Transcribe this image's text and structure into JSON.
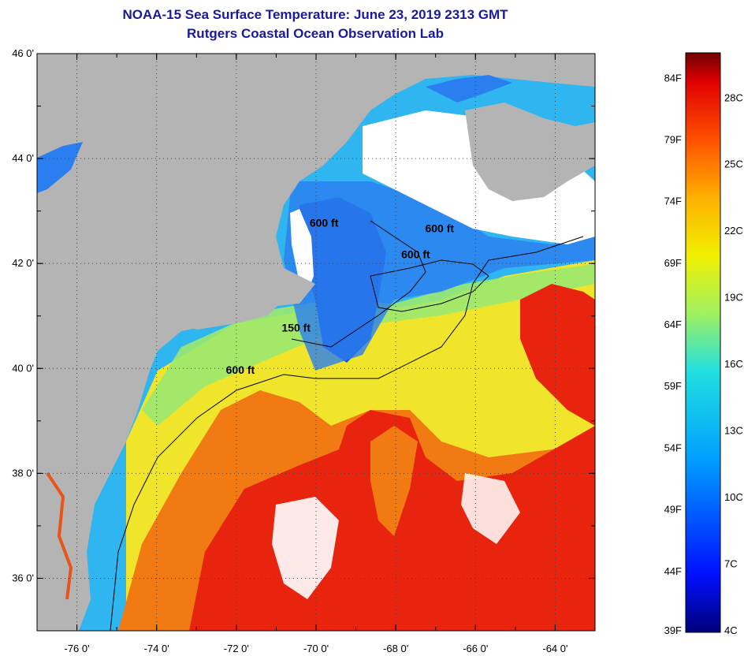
{
  "title": {
    "line1": "NOAA-15 Sea Surface Temperature:  June 23, 2019 2313 GMT",
    "line2": "Rutgers Coastal Ocean Observation Lab"
  },
  "map": {
    "lon_range": [
      -77.0,
      -63.0
    ],
    "lat_range": [
      35.0,
      46.0
    ],
    "lat_labels": [
      {
        "lat": 46,
        "label": "46 0'"
      },
      {
        "lat": 44,
        "label": "44 0'"
      },
      {
        "lat": 42,
        "label": "42 0'"
      },
      {
        "lat": 40,
        "label": "40 0'"
      },
      {
        "lat": 38,
        "label": "38 0'"
      },
      {
        "lat": 36,
        "label": "36 0'"
      }
    ],
    "lon_labels": [
      {
        "lon": -76,
        "label": "-76 0'"
      },
      {
        "lon": -74,
        "label": "-74 0'"
      },
      {
        "lon": -72,
        "label": "-72 0'"
      },
      {
        "lon": -70,
        "label": "-70 0'"
      },
      {
        "lon": -68,
        "label": "-68 0'"
      },
      {
        "lon": -66,
        "label": "-66 0'"
      },
      {
        "lon": -64,
        "label": "-64 0'"
      }
    ],
    "depth_labels": [
      {
        "text": "600 ft",
        "lon": -69.8,
        "lat": 42.7
      },
      {
        "text": "600 ft",
        "lon": -66.9,
        "lat": 42.6
      },
      {
        "text": "600 ft",
        "lon": -67.5,
        "lat": 42.1
      },
      {
        "text": "150 ft",
        "lon": -70.5,
        "lat": 40.7
      },
      {
        "text": "600 ft",
        "lon": -71.9,
        "lat": 39.9
      }
    ],
    "colors": {
      "land": "#b4b4b4",
      "cloud": "#ffffff",
      "cold": "#1a4fd8",
      "cool": "#2fb6f0",
      "mild": "#7ee89a",
      "warm": "#f2e22a",
      "hot": "#f26a10",
      "gulfstream": "#e8240e"
    }
  },
  "colorbar": {
    "f_labels": [
      {
        "t": 84,
        "label": "84F"
      },
      {
        "t": 79,
        "label": "79F"
      },
      {
        "t": 74,
        "label": "74F"
      },
      {
        "t": 69,
        "label": "69F"
      },
      {
        "t": 64,
        "label": "64F"
      },
      {
        "t": 59,
        "label": "59F"
      },
      {
        "t": 54,
        "label": "54F"
      },
      {
        "t": 49,
        "label": "49F"
      },
      {
        "t": 44,
        "label": "44F"
      },
      {
        "t": 39,
        "label": "39F"
      }
    ],
    "c_labels": [
      {
        "t": 28,
        "label": "28C"
      },
      {
        "t": 25,
        "label": "25C"
      },
      {
        "t": 22,
        "label": "22C"
      },
      {
        "t": 19,
        "label": "19C"
      },
      {
        "t": 16,
        "label": "16C"
      },
      {
        "t": 13,
        "label": "13C"
      },
      {
        "t": 10,
        "label": "10C"
      },
      {
        "t": 7,
        "label": "7C"
      },
      {
        "t": 4,
        "label": "4C"
      }
    ],
    "f_range": [
      39,
      86
    ]
  }
}
